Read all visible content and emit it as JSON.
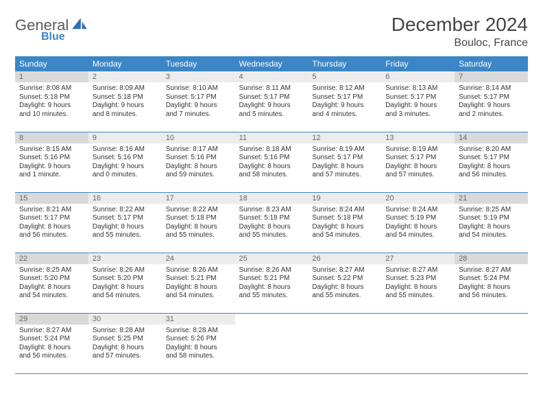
{
  "logo": {
    "text_general": "General",
    "text_blue": "Blue",
    "icon_color": "#2f6fa8"
  },
  "header": {
    "month_title": "December 2024",
    "location": "Bouloc, France"
  },
  "colors": {
    "header_bg": "#3b86c6",
    "header_text": "#ffffff",
    "daynum_bg": "#ececec",
    "daynum_shade_bg": "#d9d9d9",
    "row_divider": "#3b86c6",
    "text": "#333333"
  },
  "weekdays": [
    "Sunday",
    "Monday",
    "Tuesday",
    "Wednesday",
    "Thursday",
    "Friday",
    "Saturday"
  ],
  "weeks": [
    [
      {
        "day": "1",
        "shade": true,
        "sunrise": "Sunrise: 8:08 AM",
        "sunset": "Sunset: 5:18 PM",
        "daylight1": "Daylight: 9 hours",
        "daylight2": "and 10 minutes."
      },
      {
        "day": "2",
        "shade": false,
        "sunrise": "Sunrise: 8:09 AM",
        "sunset": "Sunset: 5:18 PM",
        "daylight1": "Daylight: 9 hours",
        "daylight2": "and 8 minutes."
      },
      {
        "day": "3",
        "shade": false,
        "sunrise": "Sunrise: 8:10 AM",
        "sunset": "Sunset: 5:17 PM",
        "daylight1": "Daylight: 9 hours",
        "daylight2": "and 7 minutes."
      },
      {
        "day": "4",
        "shade": false,
        "sunrise": "Sunrise: 8:11 AM",
        "sunset": "Sunset: 5:17 PM",
        "daylight1": "Daylight: 9 hours",
        "daylight2": "and 5 minutes."
      },
      {
        "day": "5",
        "shade": false,
        "sunrise": "Sunrise: 8:12 AM",
        "sunset": "Sunset: 5:17 PM",
        "daylight1": "Daylight: 9 hours",
        "daylight2": "and 4 minutes."
      },
      {
        "day": "6",
        "shade": false,
        "sunrise": "Sunrise: 8:13 AM",
        "sunset": "Sunset: 5:17 PM",
        "daylight1": "Daylight: 9 hours",
        "daylight2": "and 3 minutes."
      },
      {
        "day": "7",
        "shade": true,
        "sunrise": "Sunrise: 8:14 AM",
        "sunset": "Sunset: 5:17 PM",
        "daylight1": "Daylight: 9 hours",
        "daylight2": "and 2 minutes."
      }
    ],
    [
      {
        "day": "8",
        "shade": true,
        "sunrise": "Sunrise: 8:15 AM",
        "sunset": "Sunset: 5:16 PM",
        "daylight1": "Daylight: 9 hours",
        "daylight2": "and 1 minute."
      },
      {
        "day": "9",
        "shade": false,
        "sunrise": "Sunrise: 8:16 AM",
        "sunset": "Sunset: 5:16 PM",
        "daylight1": "Daylight: 9 hours",
        "daylight2": "and 0 minutes."
      },
      {
        "day": "10",
        "shade": false,
        "sunrise": "Sunrise: 8:17 AM",
        "sunset": "Sunset: 5:16 PM",
        "daylight1": "Daylight: 8 hours",
        "daylight2": "and 59 minutes."
      },
      {
        "day": "11",
        "shade": false,
        "sunrise": "Sunrise: 8:18 AM",
        "sunset": "Sunset: 5:16 PM",
        "daylight1": "Daylight: 8 hours",
        "daylight2": "and 58 minutes."
      },
      {
        "day": "12",
        "shade": false,
        "sunrise": "Sunrise: 8:19 AM",
        "sunset": "Sunset: 5:17 PM",
        "daylight1": "Daylight: 8 hours",
        "daylight2": "and 57 minutes."
      },
      {
        "day": "13",
        "shade": false,
        "sunrise": "Sunrise: 8:19 AM",
        "sunset": "Sunset: 5:17 PM",
        "daylight1": "Daylight: 8 hours",
        "daylight2": "and 57 minutes."
      },
      {
        "day": "14",
        "shade": true,
        "sunrise": "Sunrise: 8:20 AM",
        "sunset": "Sunset: 5:17 PM",
        "daylight1": "Daylight: 8 hours",
        "daylight2": "and 56 minutes."
      }
    ],
    [
      {
        "day": "15",
        "shade": true,
        "sunrise": "Sunrise: 8:21 AM",
        "sunset": "Sunset: 5:17 PM",
        "daylight1": "Daylight: 8 hours",
        "daylight2": "and 56 minutes."
      },
      {
        "day": "16",
        "shade": false,
        "sunrise": "Sunrise: 8:22 AM",
        "sunset": "Sunset: 5:17 PM",
        "daylight1": "Daylight: 8 hours",
        "daylight2": "and 55 minutes."
      },
      {
        "day": "17",
        "shade": false,
        "sunrise": "Sunrise: 8:22 AM",
        "sunset": "Sunset: 5:18 PM",
        "daylight1": "Daylight: 8 hours",
        "daylight2": "and 55 minutes."
      },
      {
        "day": "18",
        "shade": false,
        "sunrise": "Sunrise: 8:23 AM",
        "sunset": "Sunset: 5:18 PM",
        "daylight1": "Daylight: 8 hours",
        "daylight2": "and 55 minutes."
      },
      {
        "day": "19",
        "shade": false,
        "sunrise": "Sunrise: 8:24 AM",
        "sunset": "Sunset: 5:18 PM",
        "daylight1": "Daylight: 8 hours",
        "daylight2": "and 54 minutes."
      },
      {
        "day": "20",
        "shade": false,
        "sunrise": "Sunrise: 8:24 AM",
        "sunset": "Sunset: 5:19 PM",
        "daylight1": "Daylight: 8 hours",
        "daylight2": "and 54 minutes."
      },
      {
        "day": "21",
        "shade": true,
        "sunrise": "Sunrise: 8:25 AM",
        "sunset": "Sunset: 5:19 PM",
        "daylight1": "Daylight: 8 hours",
        "daylight2": "and 54 minutes."
      }
    ],
    [
      {
        "day": "22",
        "shade": true,
        "sunrise": "Sunrise: 8:25 AM",
        "sunset": "Sunset: 5:20 PM",
        "daylight1": "Daylight: 8 hours",
        "daylight2": "and 54 minutes."
      },
      {
        "day": "23",
        "shade": false,
        "sunrise": "Sunrise: 8:26 AM",
        "sunset": "Sunset: 5:20 PM",
        "daylight1": "Daylight: 8 hours",
        "daylight2": "and 54 minutes."
      },
      {
        "day": "24",
        "shade": false,
        "sunrise": "Sunrise: 8:26 AM",
        "sunset": "Sunset: 5:21 PM",
        "daylight1": "Daylight: 8 hours",
        "daylight2": "and 54 minutes."
      },
      {
        "day": "25",
        "shade": false,
        "sunrise": "Sunrise: 8:26 AM",
        "sunset": "Sunset: 5:21 PM",
        "daylight1": "Daylight: 8 hours",
        "daylight2": "and 55 minutes."
      },
      {
        "day": "26",
        "shade": false,
        "sunrise": "Sunrise: 8:27 AM",
        "sunset": "Sunset: 5:22 PM",
        "daylight1": "Daylight: 8 hours",
        "daylight2": "and 55 minutes."
      },
      {
        "day": "27",
        "shade": false,
        "sunrise": "Sunrise: 8:27 AM",
        "sunset": "Sunset: 5:23 PM",
        "daylight1": "Daylight: 8 hours",
        "daylight2": "and 55 minutes."
      },
      {
        "day": "28",
        "shade": true,
        "sunrise": "Sunrise: 8:27 AM",
        "sunset": "Sunset: 5:24 PM",
        "daylight1": "Daylight: 8 hours",
        "daylight2": "and 56 minutes."
      }
    ],
    [
      {
        "day": "29",
        "shade": true,
        "sunrise": "Sunrise: 8:27 AM",
        "sunset": "Sunset: 5:24 PM",
        "daylight1": "Daylight: 8 hours",
        "daylight2": "and 56 minutes."
      },
      {
        "day": "30",
        "shade": false,
        "sunrise": "Sunrise: 8:28 AM",
        "sunset": "Sunset: 5:25 PM",
        "daylight1": "Daylight: 8 hours",
        "daylight2": "and 57 minutes."
      },
      {
        "day": "31",
        "shade": false,
        "sunrise": "Sunrise: 8:28 AM",
        "sunset": "Sunset: 5:26 PM",
        "daylight1": "Daylight: 8 hours",
        "daylight2": "and 58 minutes."
      },
      {
        "empty": true
      },
      {
        "empty": true
      },
      {
        "empty": true
      },
      {
        "empty": true
      }
    ]
  ]
}
